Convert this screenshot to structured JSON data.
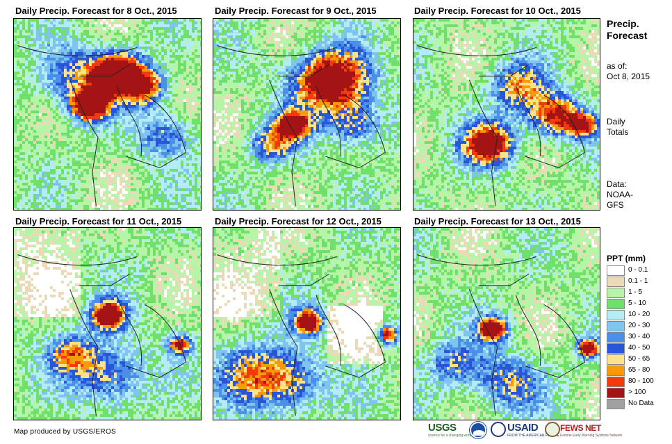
{
  "panels": [
    {
      "title": "Daily Precip. Forecast for 8 Oct., 2015",
      "variant": 0
    },
    {
      "title": "Daily Precip. Forecast for 9 Oct., 2015",
      "variant": 1
    },
    {
      "title": "Daily Precip. Forecast for 10 Oct., 2015",
      "variant": 2
    },
    {
      "title": "Daily Precip. Forecast for 11 Oct., 2015",
      "variant": 3
    },
    {
      "title": "Daily Precip. Forecast for 12 Oct., 2015",
      "variant": 4
    },
    {
      "title": "Daily Precip. Forecast for 13 Oct., 2015",
      "variant": 5
    }
  ],
  "side": {
    "title_line1": "Precip.",
    "title_line2": "Forecast",
    "asof_line1": "as of:",
    "asof_line2": "Oct 8, 2015",
    "daily_line1": "Daily",
    "daily_line2": "Totals",
    "data_line1": "Data:",
    "data_line2": "NOAA-",
    "data_line3": "GFS"
  },
  "legend": {
    "title": "PPT (mm)",
    "items": [
      {
        "label": "0 - 0.1",
        "color": "#ffffff"
      },
      {
        "label": "0.1 - 1",
        "color": "#ecd9b8"
      },
      {
        "label": "1 - 5",
        "color": "#b6f5a8"
      },
      {
        "label": "5 - 10",
        "color": "#6fe06a"
      },
      {
        "label": "10 - 20",
        "color": "#b3ecf5"
      },
      {
        "label": "20 - 30",
        "color": "#7fc3ef"
      },
      {
        "label": "30 - 40",
        "color": "#4a90e8"
      },
      {
        "label": "40 - 50",
        "color": "#2a55d6"
      },
      {
        "label": "50 - 65",
        "color": "#fce38a"
      },
      {
        "label": "65 - 80",
        "color": "#f79a08"
      },
      {
        "label": "80 - 100",
        "color": "#f23a0c"
      },
      {
        "label": "> 100",
        "color": "#a41414"
      },
      {
        "label": "No Data",
        "color": "#a0a0a0"
      }
    ]
  },
  "credit": "Map produced by USGS/EROS",
  "logos": {
    "usgs": "USGS",
    "usgs_sub": "science for a changing world",
    "usaid": "USAID",
    "usaid_sub": "FROM THE AMERICAN PEOPLE",
    "fews": "FEWS NET",
    "fews_sub": "Famine Early Warning Systems Network"
  }
}
